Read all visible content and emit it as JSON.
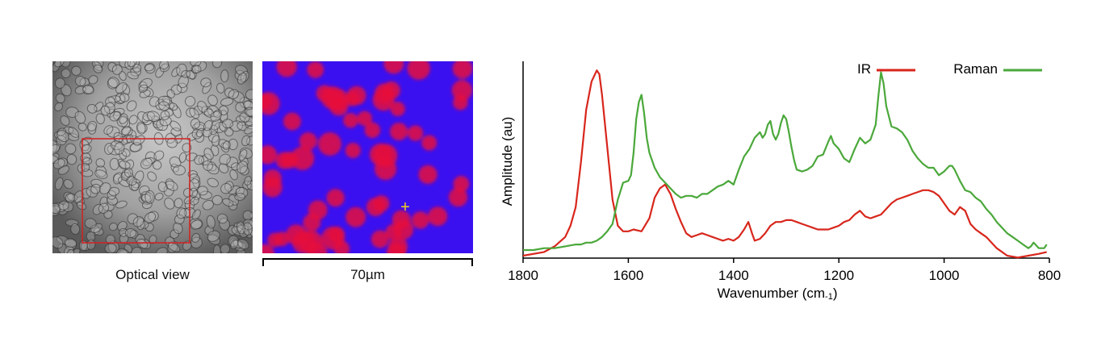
{
  "panels": {
    "optical_caption": "Optical view",
    "scale_label": "70µm",
    "marker_symbol": "+"
  },
  "colors": {
    "ir": "#d8261c",
    "raman": "#4aa83a",
    "roi_box": "#d42020",
    "map_background": "#3a10f0",
    "map_particles": "#e0103a",
    "marker": "#f0d020"
  },
  "chart_data": {
    "type": "line",
    "xlabel": "Wavenumber (cm-1)",
    "xlabel_main": "Wavenumber (cm",
    "xlabel_sup": "-1",
    "xlabel_close": ")",
    "ylabel": "Amplitude (au)",
    "xlim": [
      1800,
      800
    ],
    "ylim": [
      0,
      1
    ],
    "x_reversed": true,
    "x_ticks": [
      1800,
      1600,
      1400,
      1200,
      1000,
      800
    ],
    "grid": false,
    "legend_position": "top-right",
    "series": [
      {
        "name": "IR",
        "color": "#d8261c",
        "x": [
          1800,
          1760,
          1740,
          1720,
          1710,
          1700,
          1690,
          1680,
          1670,
          1660,
          1655,
          1650,
          1640,
          1630,
          1620,
          1610,
          1600,
          1590,
          1575,
          1560,
          1550,
          1540,
          1530,
          1520,
          1510,
          1500,
          1490,
          1480,
          1470,
          1460,
          1450,
          1440,
          1430,
          1420,
          1410,
          1400,
          1390,
          1380,
          1372,
          1365,
          1360,
          1350,
          1340,
          1330,
          1320,
          1310,
          1300,
          1290,
          1280,
          1270,
          1260,
          1250,
          1240,
          1230,
          1220,
          1210,
          1200,
          1190,
          1180,
          1170,
          1160,
          1150,
          1140,
          1130,
          1120,
          1110,
          1100,
          1090,
          1080,
          1070,
          1060,
          1050,
          1040,
          1030,
          1020,
          1010,
          1000,
          990,
          980,
          970,
          960,
          950,
          940,
          930,
          920,
          910,
          900,
          880,
          860,
          840,
          820,
          805
        ],
        "y": [
          0.0,
          0.02,
          0.05,
          0.1,
          0.16,
          0.26,
          0.5,
          0.78,
          0.93,
          0.99,
          0.97,
          0.86,
          0.58,
          0.3,
          0.16,
          0.13,
          0.13,
          0.14,
          0.13,
          0.2,
          0.31,
          0.36,
          0.38,
          0.33,
          0.25,
          0.18,
          0.12,
          0.1,
          0.11,
          0.12,
          0.11,
          0.1,
          0.09,
          0.08,
          0.09,
          0.08,
          0.1,
          0.14,
          0.18,
          0.12,
          0.08,
          0.09,
          0.12,
          0.16,
          0.18,
          0.18,
          0.19,
          0.19,
          0.18,
          0.17,
          0.16,
          0.15,
          0.14,
          0.14,
          0.14,
          0.15,
          0.16,
          0.18,
          0.19,
          0.22,
          0.24,
          0.21,
          0.2,
          0.21,
          0.22,
          0.25,
          0.28,
          0.3,
          0.31,
          0.32,
          0.33,
          0.34,
          0.35,
          0.35,
          0.34,
          0.32,
          0.28,
          0.24,
          0.22,
          0.26,
          0.24,
          0.17,
          0.14,
          0.12,
          0.1,
          0.07,
          0.04,
          0.0,
          -0.01,
          0.0,
          0.01,
          0.02
        ]
      },
      {
        "name": "Raman",
        "color": "#4aa83a",
        "x": [
          1800,
          1780,
          1760,
          1740,
          1720,
          1700,
          1690,
          1680,
          1670,
          1660,
          1650,
          1640,
          1630,
          1620,
          1610,
          1600,
          1595,
          1590,
          1585,
          1580,
          1575,
          1570,
          1565,
          1560,
          1550,
          1540,
          1530,
          1520,
          1510,
          1500,
          1490,
          1480,
          1470,
          1460,
          1450,
          1440,
          1430,
          1420,
          1410,
          1400,
          1390,
          1380,
          1370,
          1360,
          1350,
          1345,
          1340,
          1335,
          1330,
          1325,
          1320,
          1315,
          1310,
          1305,
          1300,
          1295,
          1290,
          1285,
          1280,
          1270,
          1260,
          1250,
          1240,
          1230,
          1220,
          1215,
          1210,
          1200,
          1190,
          1180,
          1170,
          1160,
          1150,
          1140,
          1130,
          1125,
          1120,
          1115,
          1110,
          1100,
          1090,
          1080,
          1070,
          1060,
          1050,
          1040,
          1030,
          1020,
          1010,
          1000,
          990,
          985,
          980,
          970,
          960,
          950,
          940,
          930,
          920,
          910,
          900,
          890,
          880,
          870,
          860,
          850,
          840,
          835,
          830,
          820,
          810,
          805
        ],
        "y": [
          0.03,
          0.03,
          0.04,
          0.04,
          0.05,
          0.06,
          0.06,
          0.07,
          0.07,
          0.08,
          0.1,
          0.13,
          0.17,
          0.3,
          0.39,
          0.4,
          0.43,
          0.55,
          0.73,
          0.82,
          0.86,
          0.76,
          0.63,
          0.55,
          0.47,
          0.42,
          0.39,
          0.36,
          0.33,
          0.31,
          0.32,
          0.32,
          0.31,
          0.33,
          0.33,
          0.35,
          0.37,
          0.38,
          0.4,
          0.38,
          0.46,
          0.53,
          0.57,
          0.63,
          0.66,
          0.63,
          0.65,
          0.7,
          0.72,
          0.65,
          0.62,
          0.65,
          0.71,
          0.75,
          0.73,
          0.66,
          0.58,
          0.51,
          0.46,
          0.45,
          0.46,
          0.48,
          0.53,
          0.54,
          0.61,
          0.64,
          0.6,
          0.57,
          0.52,
          0.5,
          0.57,
          0.63,
          0.6,
          0.62,
          0.7,
          0.85,
          0.98,
          0.92,
          0.8,
          0.69,
          0.68,
          0.66,
          0.62,
          0.56,
          0.52,
          0.49,
          0.47,
          0.47,
          0.43,
          0.45,
          0.48,
          0.48,
          0.46,
          0.4,
          0.35,
          0.34,
          0.31,
          0.29,
          0.25,
          0.22,
          0.18,
          0.15,
          0.12,
          0.1,
          0.08,
          0.06,
          0.04,
          0.05,
          0.07,
          0.04,
          0.04,
          0.06
        ]
      }
    ]
  }
}
